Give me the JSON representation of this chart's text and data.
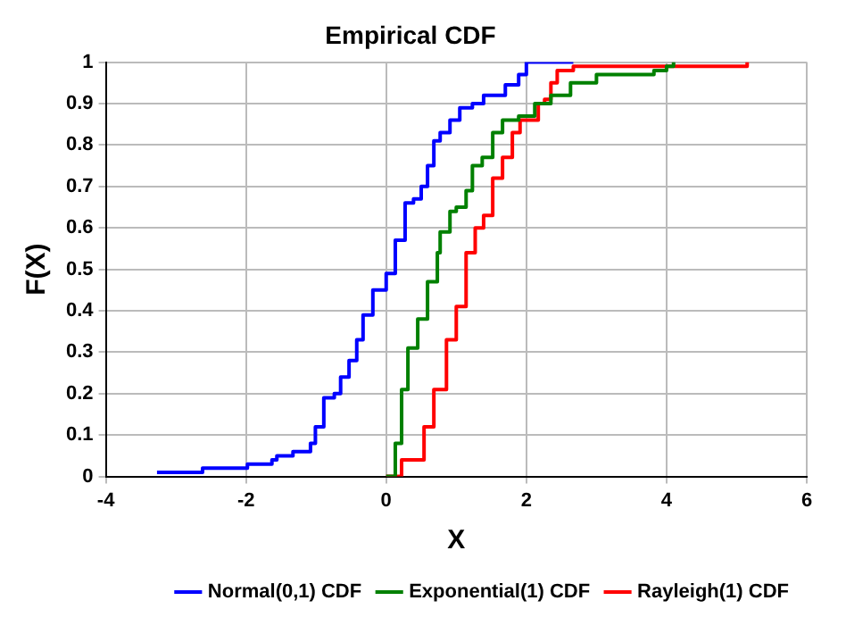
{
  "chart_data": {
    "type": "step",
    "title": "Empirical CDF",
    "xlabel": "X",
    "ylabel": "F(X)",
    "xlim": [
      -4,
      6
    ],
    "xticks": [
      -4,
      -2,
      0,
      2,
      4,
      6
    ],
    "ylim": [
      0,
      1
    ],
    "yticks": [
      0,
      0.1,
      0.2,
      0.3,
      0.4,
      0.5,
      0.6,
      0.7,
      0.8,
      0.9,
      1
    ],
    "grid": true,
    "legend": "bottom right",
    "line_style": "solid",
    "marker": "none",
    "series": [
      {
        "name": "Normal(0,1) CDF",
        "color": "#0000ff",
        "x": [
          -3.27,
          -2.62,
          -1.98,
          -1.63,
          -1.56,
          -1.33,
          -1.08,
          -1.01,
          -0.89,
          -0.74,
          -0.65,
          -0.53,
          -0.42,
          -0.33,
          -0.19,
          0.0,
          0.13,
          0.27,
          0.39,
          0.5,
          0.59,
          0.68,
          0.77,
          0.91,
          1.05,
          1.23,
          1.39,
          1.7,
          1.89,
          2.0,
          2.67
        ],
        "values": [
          0.01,
          0.02,
          0.03,
          0.04,
          0.05,
          0.06,
          0.08,
          0.12,
          0.19,
          0.2,
          0.24,
          0.28,
          0.33,
          0.39,
          0.45,
          0.49,
          0.57,
          0.66,
          0.67,
          0.7,
          0.75,
          0.81,
          0.83,
          0.86,
          0.89,
          0.9,
          0.92,
          0.945,
          0.97,
          1.0,
          1.0
        ]
      },
      {
        "name": "Exponential(1) CDF",
        "color": "#008000",
        "x": [
          0,
          0.13,
          0.22,
          0.31,
          0.45,
          0.59,
          0.73,
          0.77,
          0.91,
          1.0,
          1.14,
          1.23,
          1.37,
          1.52,
          1.66,
          1.89,
          2.12,
          2.35,
          2.63,
          3.0,
          3.82,
          4.0,
          4.1
        ],
        "values": [
          0,
          0.08,
          0.21,
          0.31,
          0.38,
          0.47,
          0.54,
          0.59,
          0.64,
          0.65,
          0.69,
          0.75,
          0.77,
          0.83,
          0.86,
          0.87,
          0.9,
          0.92,
          0.95,
          0.97,
          0.98,
          0.99,
          1.0
        ]
      },
      {
        "name": "Rayleigh(1) CDF",
        "color": "#ff0000",
        "x": [
          0,
          0.22,
          0.45,
          0.54,
          0.68,
          0.86,
          1.0,
          1.14,
          1.27,
          1.39,
          1.52,
          1.66,
          1.8,
          1.91,
          2.17,
          2.26,
          2.35,
          2.44,
          2.67,
          4.1,
          5.15
        ],
        "values": [
          0,
          0.04,
          0.04,
          0.12,
          0.21,
          0.33,
          0.41,
          0.54,
          0.6,
          0.63,
          0.72,
          0.77,
          0.83,
          0.86,
          0.9,
          0.91,
          0.95,
          0.98,
          0.99,
          0.99,
          1.0
        ]
      }
    ]
  }
}
